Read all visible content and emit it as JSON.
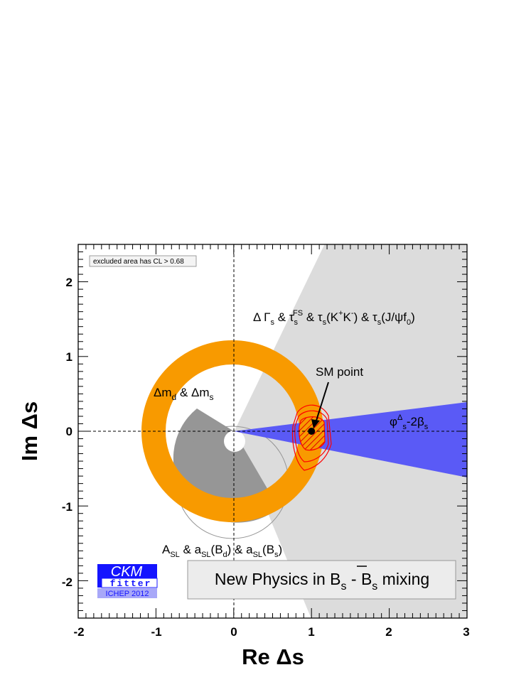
{
  "chart_data": {
    "type": "contour",
    "xlabel": "Re Δs",
    "ylabel": "Im Δs",
    "xlim": [
      -2,
      3
    ],
    "ylim": [
      -2.5,
      2.5
    ],
    "xticks": [
      "-2",
      "-1",
      "0",
      "1",
      "2",
      "3"
    ],
    "yticks": [
      "-2",
      "-1",
      "0",
      "1",
      "2"
    ],
    "grid": false,
    "dashed_zero_lines": true,
    "legend_note": "excluded area has CL > 0.68",
    "badge": {
      "title": "New Physics in Bs - B̄s mixing",
      "main": "New Physics in B",
      "sub1": "s",
      "mid": " - B",
      "sub2": "s",
      "tail": " mixing"
    },
    "logo": {
      "line1": "CKM",
      "line2": "fitter",
      "line3": "ICHEP 2012",
      "color": "#1414ff"
    },
    "regions": [
      {
        "name": "Δmd & Δms",
        "shape": "annulus",
        "center": [
          -0.02,
          0.0
        ],
        "r_inner": 1.17,
        "r_outer": 1.17,
        "ring_width": 0.32,
        "color": "#f89a00"
      },
      {
        "name": "ΔΓs & τs^FS & τs(K+K-) & τs(J/ψf0)",
        "shape": "wedge",
        "color": "#dcdcdc"
      },
      {
        "name": "ASL & aSL(Bd) & aSL(Bs)",
        "shape": "disk-sector",
        "center": [
          -0.02,
          -0.68
        ],
        "radius": 0.75,
        "color": "#969696"
      },
      {
        "name": "φΔs-2βs",
        "shape": "wedge",
        "angle_deg": [
          -5.9,
          3.4
        ],
        "color": "#5a5af6"
      }
    ],
    "points": [
      {
        "name": "SM point",
        "x": 1.0,
        "y": 0.0
      }
    ],
    "labels": {
      "dm": {
        "a": "Δm",
        "a_sub": "d",
        "mid": " & Δm",
        "b_sub": "s"
      },
      "gamma": {
        "p1": "Δ Γ",
        "s1": "s",
        "p2": " & τ",
        "s2": "s",
        "sup2": "FS",
        "p3": " & τ",
        "s3": "s",
        "p4": "(K",
        "sup4": "+",
        "p5": "K",
        "sup5": "-",
        "p6": ") & τ",
        "s6": "s",
        "p7": "(J/ψf",
        "s7": "0",
        "p8": ")"
      },
      "asl": {
        "p1": "A",
        "s1": "SL",
        "p2": " & a",
        "s2": "SL",
        "p3": "(B",
        "s3": "d",
        "p4": ") & a",
        "s4": "SL",
        "p5": "(B",
        "s5": "s",
        "p6": ")"
      },
      "phi": {
        "p1": "φ",
        "sup1": "Δ",
        "s1": "s",
        "p2": "-2β",
        "s2": "s"
      },
      "sm": "SM point"
    }
  }
}
